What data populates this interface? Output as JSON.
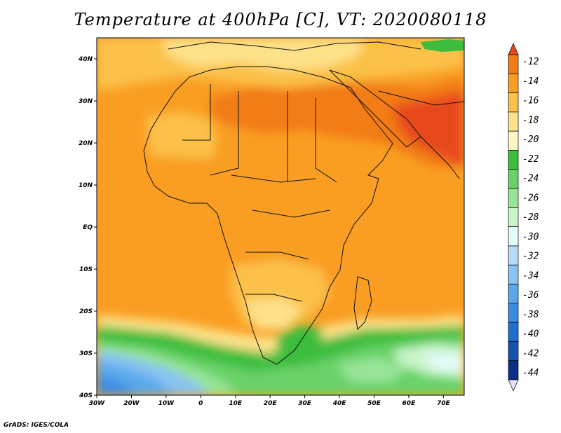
{
  "title": "Temperature at 400hPa [C], VT: 2020080118",
  "footer": "GrADS: IGES/COLA",
  "map": {
    "lon_range": [
      -30,
      76
    ],
    "lat_range": [
      -40,
      45
    ],
    "lon_ticks": [
      "30W",
      "20W",
      "10W",
      "0",
      "10E",
      "20E",
      "30E",
      "40E",
      "50E",
      "60E",
      "70E"
    ],
    "lon_tick_values": [
      -30,
      -20,
      -10,
      0,
      10,
      20,
      30,
      40,
      50,
      60,
      70
    ],
    "lat_ticks": [
      "40N",
      "30N",
      "20N",
      "10N",
      "EQ",
      "10S",
      "20S",
      "30S",
      "40S"
    ],
    "lat_tick_values": [
      40,
      30,
      20,
      10,
      0,
      -10,
      -20,
      -30,
      -40
    ]
  },
  "colorbar": {
    "labels": [
      "-12",
      "-14",
      "-16",
      "-18",
      "-20",
      "-22",
      "-24",
      "-26",
      "-28",
      "-30",
      "-32",
      "-34",
      "-36",
      "-38",
      "-40",
      "-42",
      "-44"
    ],
    "colors": [
      "#e8491f",
      "#f27b16",
      "#f99e22",
      "#fbc148",
      "#fde28a",
      "#fdf6c4",
      "#3cbd3c",
      "#69d269",
      "#98e598",
      "#c8f4c8",
      "#e4fbfb",
      "#b5dcf6",
      "#89c3f1",
      "#5aa8ec",
      "#3a8ce3",
      "#1f6fcf",
      "#1551b1",
      "#0b2e8a",
      "#0e1170"
    ]
  }
}
